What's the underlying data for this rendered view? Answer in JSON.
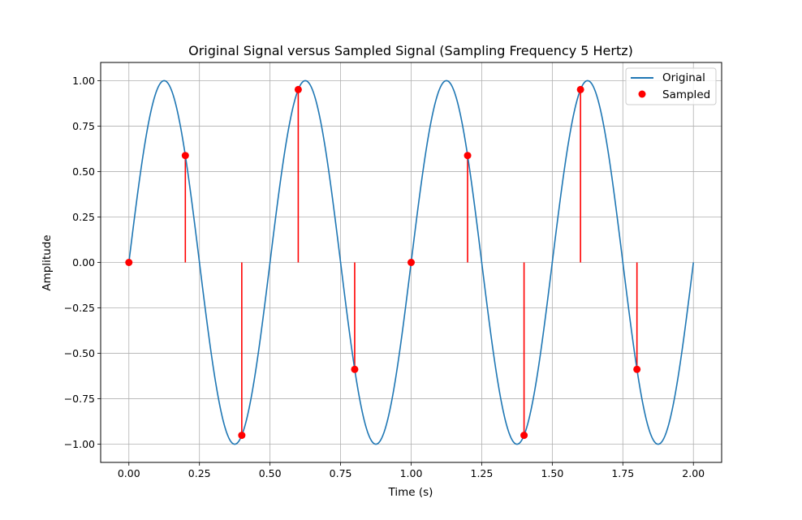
{
  "chart_data": {
    "type": "line",
    "title": "Original Signal versus Sampled Signal (Sampling Frequency 5 Hertz)",
    "xlabel": "Time (s)",
    "ylabel": "Amplitude",
    "xlim": [
      -0.1,
      2.1
    ],
    "ylim": [
      -1.1,
      1.1
    ],
    "xticks": [
      "0.00",
      "0.25",
      "0.50",
      "0.75",
      "1.00",
      "1.25",
      "1.50",
      "1.75",
      "2.00"
    ],
    "xtick_values": [
      0.0,
      0.25,
      0.5,
      0.75,
      1.0,
      1.25,
      1.5,
      1.75,
      2.0
    ],
    "yticks": [
      "1.00",
      "0.75",
      "0.50",
      "0.25",
      "0.00",
      "−0.25",
      "−0.50",
      "−0.75",
      "−1.00"
    ],
    "ytick_values": [
      1.0,
      0.75,
      0.5,
      0.25,
      0.0,
      -0.25,
      -0.5,
      -0.75,
      -1.0
    ],
    "grid": true,
    "legend_position": "top-right",
    "series": [
      {
        "name": "Original",
        "kind": "line",
        "color": "#1f77b4",
        "function": "sin(2*pi*2*t)",
        "signal_frequency_hz": 2,
        "x_range": [
          0.0,
          2.0
        ]
      },
      {
        "name": "Sampled",
        "kind": "stem",
        "color": "#ff0000",
        "sampling_frequency_hz": 5,
        "x": [
          0.0,
          0.2,
          0.4,
          0.6,
          0.8,
          1.0,
          1.2,
          1.4,
          1.6,
          1.8
        ],
        "y": [
          0.0,
          0.588,
          -0.951,
          0.951,
          -0.588,
          0.0,
          0.588,
          -0.951,
          0.951,
          -0.588
        ]
      }
    ]
  }
}
